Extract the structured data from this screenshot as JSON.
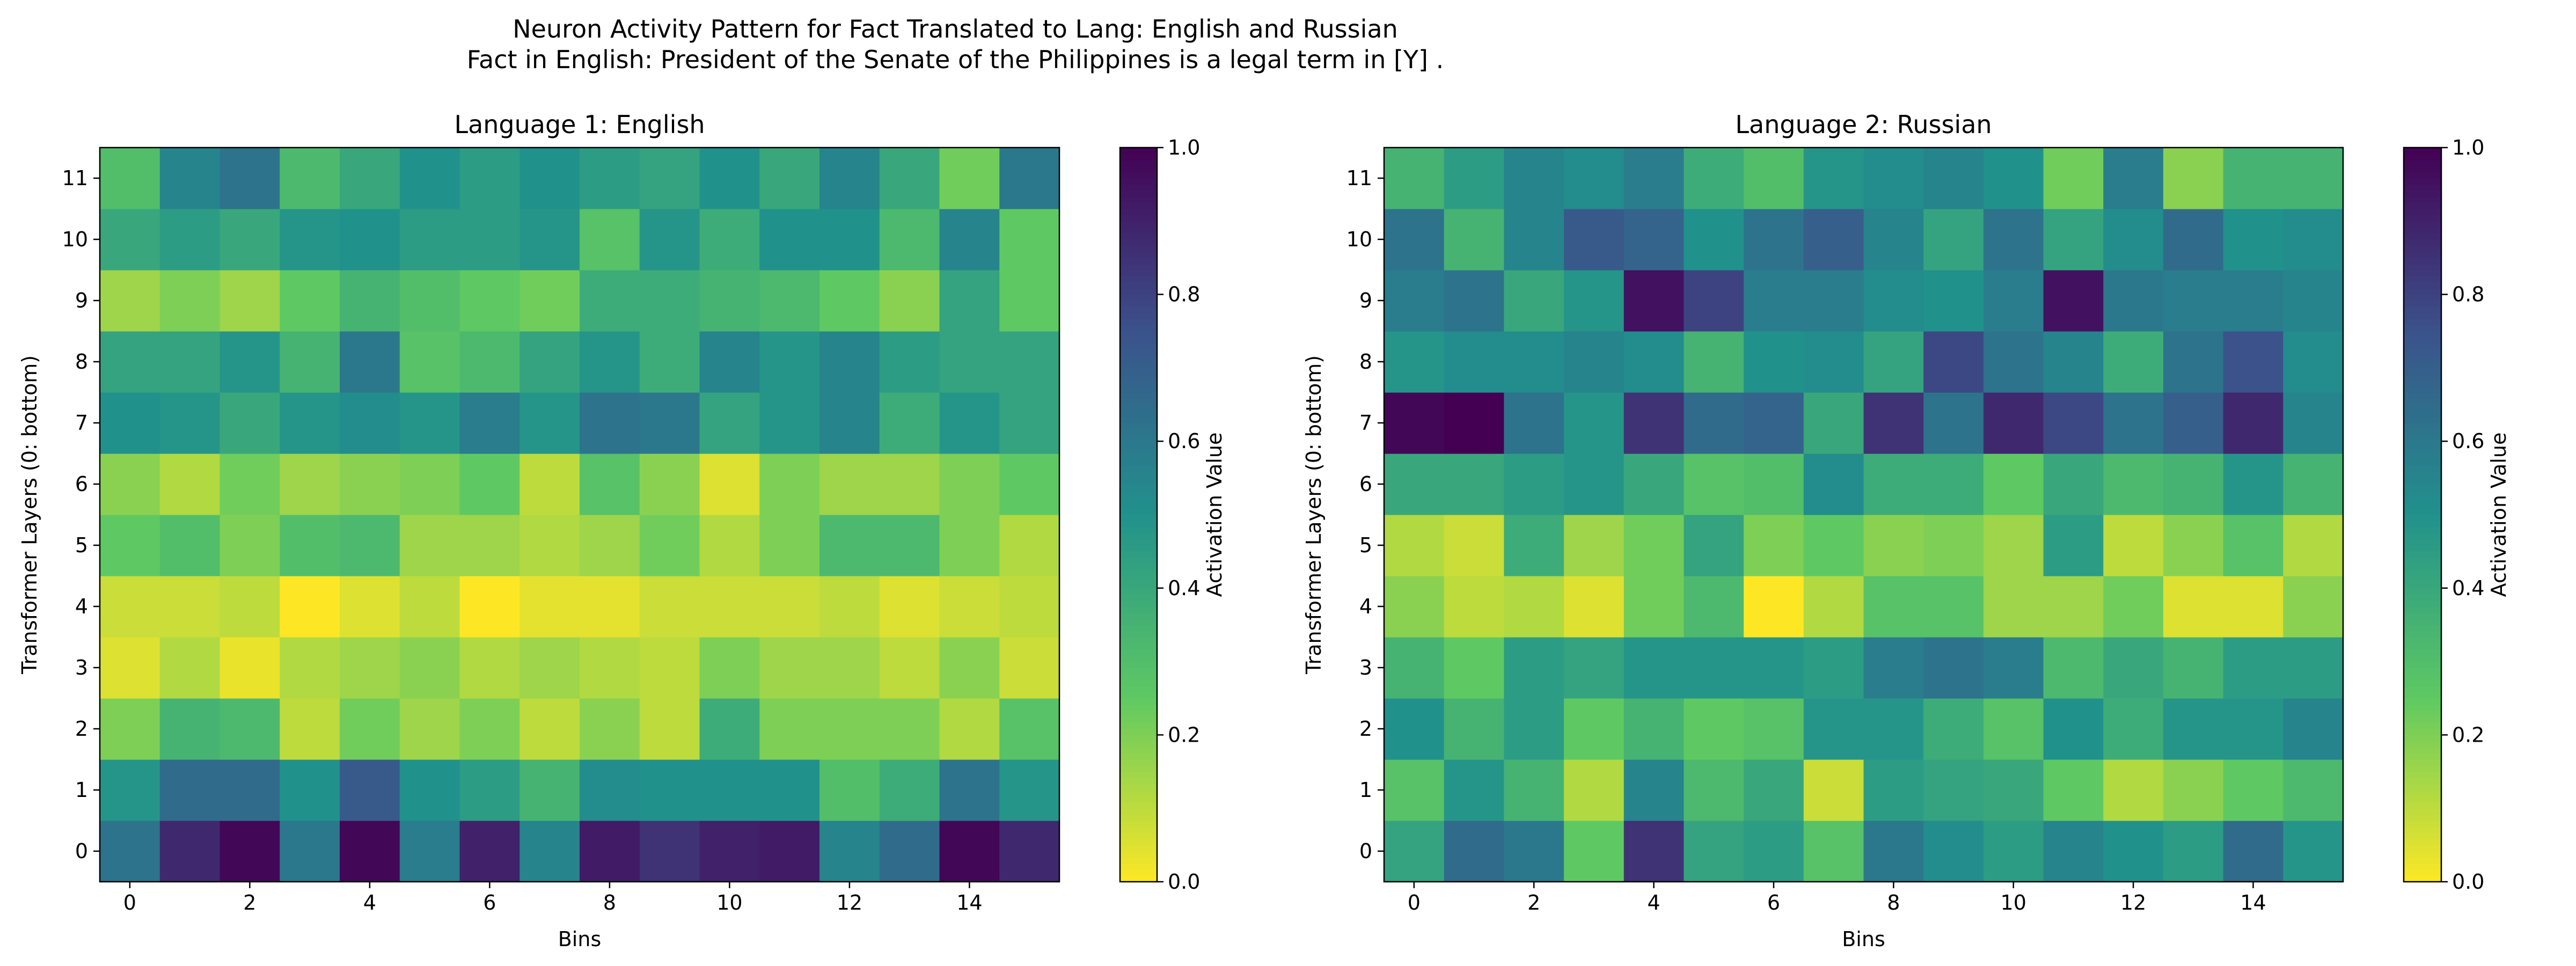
{
  "figure": {
    "title_line1": "Neuron Activity Pattern for Fact Translated to Lang: English and Russian",
    "title_line2": "Fact in English: President of the Senate of the Philippines is a legal term in [Y] ."
  },
  "chart_data": [
    {
      "type": "heatmap",
      "title": "Language 1: English",
      "xlabel": "Bins",
      "ylabel": "Transformer Layers (0: bottom)",
      "colorbar_label": "Activation Value",
      "colormap": "viridis_r",
      "vmin": 0.0,
      "vmax": 1.0,
      "x_ticks": [
        0,
        2,
        4,
        6,
        8,
        10,
        12,
        14
      ],
      "y_ticks": [
        0,
        1,
        2,
        3,
        4,
        5,
        6,
        7,
        8,
        9,
        10,
        11
      ],
      "colorbar_ticks": [
        0.0,
        0.2,
        0.4,
        0.6,
        0.8,
        1.0
      ],
      "rows_bottom_to_top": [
        [
          0.62,
          0.88,
          0.98,
          0.6,
          0.98,
          0.58,
          0.9,
          0.55,
          0.92,
          0.85,
          0.9,
          0.92,
          0.55,
          0.65,
          0.98,
          0.88
        ],
        [
          0.48,
          0.65,
          0.65,
          0.5,
          0.72,
          0.5,
          0.45,
          0.35,
          0.52,
          0.5,
          0.5,
          0.5,
          0.3,
          0.38,
          0.62,
          0.48
        ],
        [
          0.2,
          0.35,
          0.32,
          0.1,
          0.22,
          0.15,
          0.2,
          0.1,
          0.18,
          0.1,
          0.38,
          0.2,
          0.2,
          0.2,
          0.12,
          0.28
        ],
        [
          0.05,
          0.12,
          0.03,
          0.12,
          0.15,
          0.18,
          0.12,
          0.15,
          0.12,
          0.1,
          0.2,
          0.15,
          0.15,
          0.1,
          0.18,
          0.08
        ],
        [
          0.08,
          0.08,
          0.1,
          0.0,
          0.05,
          0.1,
          0.0,
          0.04,
          0.04,
          0.08,
          0.08,
          0.08,
          0.1,
          0.05,
          0.08,
          0.1
        ],
        [
          0.25,
          0.3,
          0.2,
          0.3,
          0.32,
          0.15,
          0.15,
          0.12,
          0.15,
          0.22,
          0.12,
          0.2,
          0.32,
          0.32,
          0.2,
          0.12
        ],
        [
          0.18,
          0.12,
          0.22,
          0.15,
          0.18,
          0.2,
          0.25,
          0.1,
          0.28,
          0.18,
          0.05,
          0.2,
          0.15,
          0.15,
          0.2,
          0.25
        ],
        [
          0.5,
          0.48,
          0.4,
          0.48,
          0.52,
          0.48,
          0.58,
          0.48,
          0.62,
          0.6,
          0.42,
          0.48,
          0.55,
          0.38,
          0.48,
          0.42
        ],
        [
          0.42,
          0.42,
          0.48,
          0.35,
          0.6,
          0.28,
          0.32,
          0.42,
          0.48,
          0.38,
          0.55,
          0.48,
          0.55,
          0.45,
          0.42,
          0.42
        ],
        [
          0.15,
          0.2,
          0.15,
          0.25,
          0.35,
          0.3,
          0.25,
          0.22,
          0.38,
          0.38,
          0.35,
          0.32,
          0.25,
          0.18,
          0.42,
          0.25
        ],
        [
          0.4,
          0.45,
          0.4,
          0.48,
          0.5,
          0.45,
          0.45,
          0.48,
          0.28,
          0.48,
          0.38,
          0.5,
          0.5,
          0.32,
          0.55,
          0.25
        ],
        [
          0.3,
          0.55,
          0.62,
          0.32,
          0.4,
          0.5,
          0.45,
          0.5,
          0.45,
          0.42,
          0.5,
          0.4,
          0.55,
          0.4,
          0.22,
          0.6
        ]
      ]
    },
    {
      "type": "heatmap",
      "title": "Language 2: Russian",
      "xlabel": "Bins",
      "ylabel": "Transformer Layers (0: bottom)",
      "colorbar_label": "Activation Value",
      "colormap": "viridis_r",
      "vmin": 0.0,
      "vmax": 1.0,
      "x_ticks": [
        0,
        2,
        4,
        6,
        8,
        10,
        12,
        14
      ],
      "y_ticks": [
        0,
        1,
        2,
        3,
        4,
        5,
        6,
        7,
        8,
        9,
        10,
        11
      ],
      "colorbar_ticks": [
        0.0,
        0.2,
        0.4,
        0.6,
        0.8,
        1.0
      ],
      "rows_bottom_to_top": [
        [
          0.42,
          0.65,
          0.6,
          0.25,
          0.85,
          0.42,
          0.45,
          0.28,
          0.6,
          0.52,
          0.45,
          0.55,
          0.5,
          0.45,
          0.65,
          0.48
        ],
        [
          0.28,
          0.48,
          0.35,
          0.12,
          0.55,
          0.32,
          0.4,
          0.08,
          0.45,
          0.42,
          0.4,
          0.25,
          0.12,
          0.18,
          0.25,
          0.32
        ],
        [
          0.5,
          0.35,
          0.45,
          0.25,
          0.35,
          0.25,
          0.28,
          0.48,
          0.48,
          0.38,
          0.28,
          0.5,
          0.38,
          0.48,
          0.48,
          0.55
        ],
        [
          0.35,
          0.25,
          0.45,
          0.42,
          0.48,
          0.48,
          0.48,
          0.45,
          0.58,
          0.62,
          0.58,
          0.32,
          0.4,
          0.35,
          0.45,
          0.45
        ],
        [
          0.18,
          0.1,
          0.12,
          0.05,
          0.22,
          0.32,
          0.0,
          0.12,
          0.28,
          0.28,
          0.15,
          0.15,
          0.22,
          0.05,
          0.05,
          0.18
        ],
        [
          0.12,
          0.08,
          0.38,
          0.15,
          0.22,
          0.42,
          0.2,
          0.25,
          0.18,
          0.2,
          0.15,
          0.45,
          0.1,
          0.18,
          0.28,
          0.12
        ],
        [
          0.4,
          0.4,
          0.45,
          0.48,
          0.4,
          0.28,
          0.3,
          0.52,
          0.38,
          0.38,
          0.25,
          0.4,
          0.32,
          0.35,
          0.48,
          0.35
        ],
        [
          0.98,
          1.0,
          0.62,
          0.48,
          0.85,
          0.65,
          0.68,
          0.4,
          0.85,
          0.62,
          0.88,
          0.78,
          0.62,
          0.7,
          0.88,
          0.55
        ],
        [
          0.48,
          0.52,
          0.52,
          0.55,
          0.52,
          0.35,
          0.5,
          0.52,
          0.42,
          0.78,
          0.62,
          0.55,
          0.38,
          0.62,
          0.75,
          0.52
        ],
        [
          0.58,
          0.62,
          0.4,
          0.48,
          0.95,
          0.8,
          0.58,
          0.58,
          0.52,
          0.5,
          0.58,
          0.95,
          0.6,
          0.58,
          0.58,
          0.55
        ],
        [
          0.62,
          0.35,
          0.55,
          0.72,
          0.68,
          0.5,
          0.62,
          0.7,
          0.55,
          0.42,
          0.62,
          0.42,
          0.52,
          0.65,
          0.5,
          0.52
        ],
        [
          0.35,
          0.45,
          0.55,
          0.52,
          0.58,
          0.38,
          0.3,
          0.48,
          0.52,
          0.55,
          0.5,
          0.22,
          0.58,
          0.18,
          0.35,
          0.35
        ]
      ]
    }
  ]
}
